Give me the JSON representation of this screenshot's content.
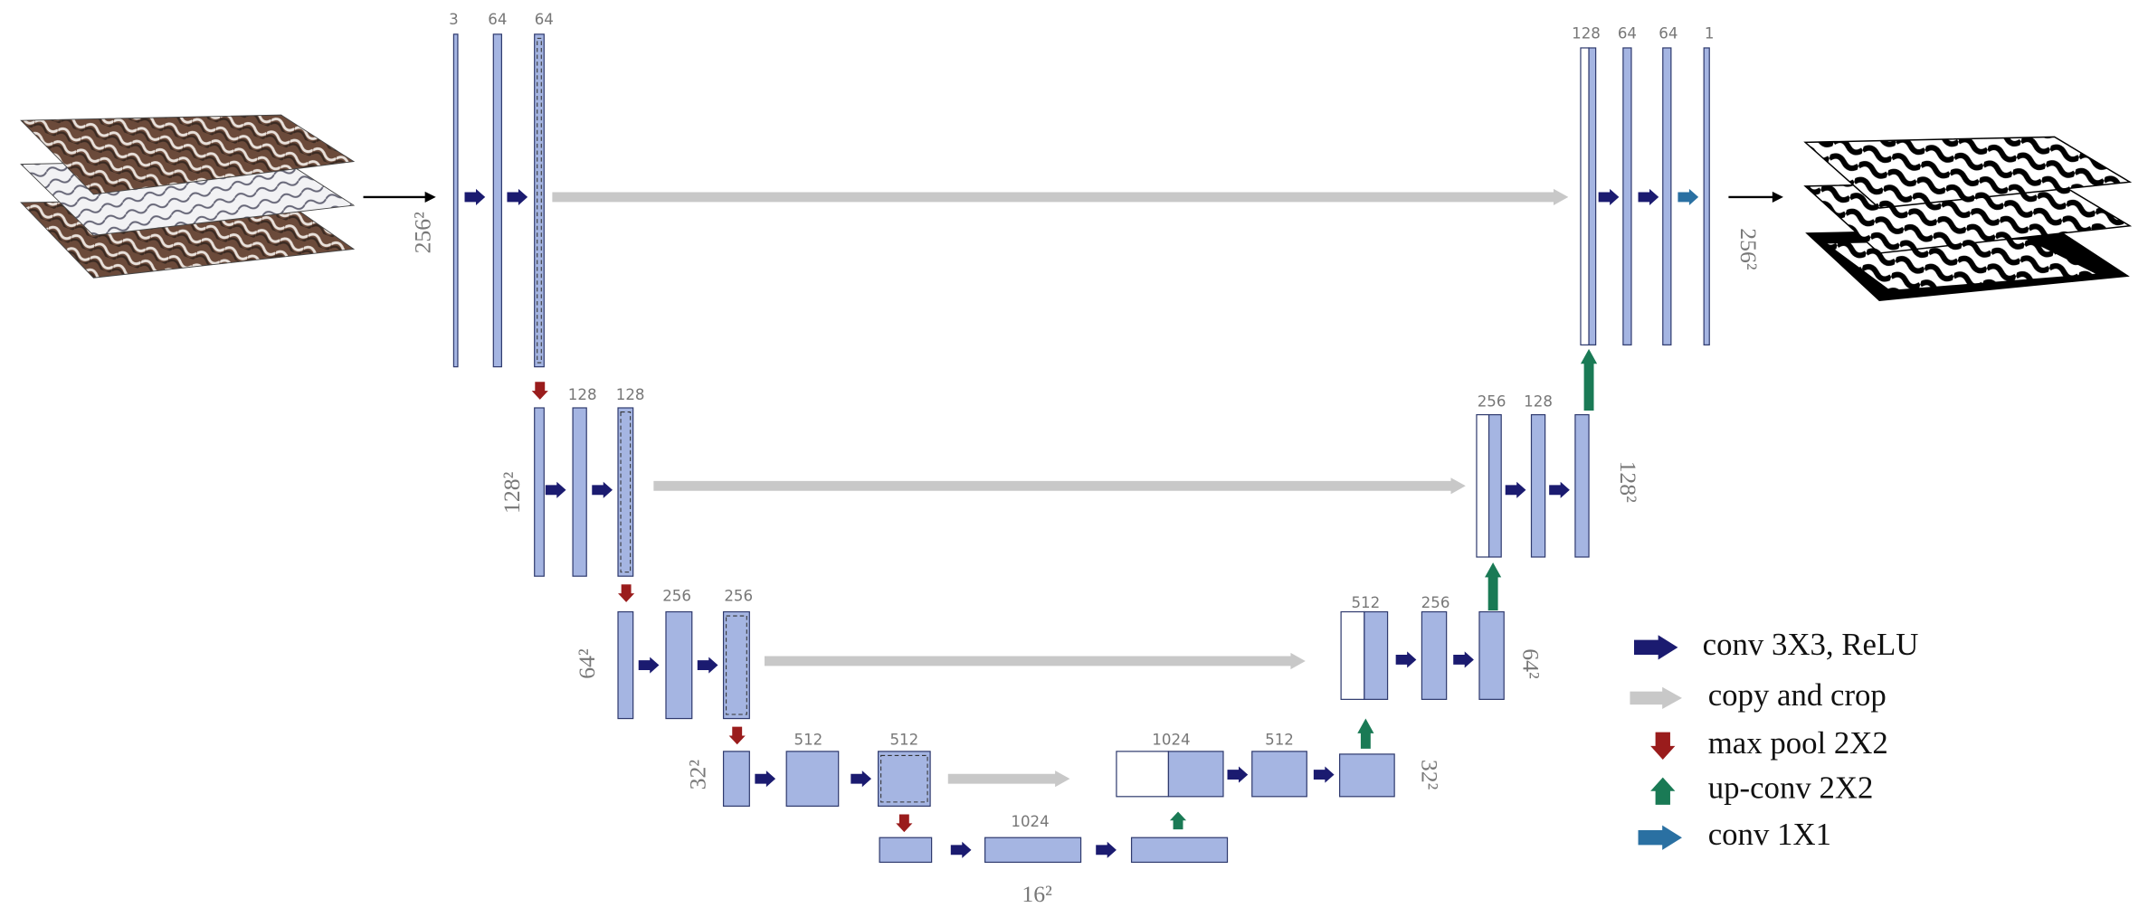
{
  "channel_labels": [
    "3",
    "64",
    "64",
    "128",
    "128",
    "256",
    "256",
    "512",
    "512",
    "1024",
    "1024",
    "512",
    "512",
    "256",
    "256",
    "128",
    "128",
    "64",
    "64",
    "1"
  ],
  "size_labels": [
    "256²",
    "128²",
    "64²",
    "32²",
    "16²",
    "32²",
    "64²",
    "128²",
    "256²"
  ],
  "legend": [
    "conv 3X3, ReLU",
    "copy and crop",
    "max pool 2X2",
    "up-conv 2X2",
    "conv 1X1"
  ]
}
